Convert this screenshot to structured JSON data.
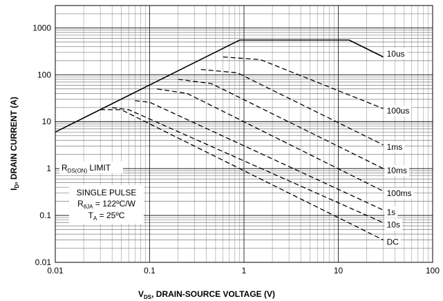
{
  "chart_data": {
    "type": "line",
    "x_scale": "log",
    "y_scale": "log",
    "xlim": [
      0.01,
      100
    ],
    "ylim": [
      0.01,
      3000
    ],
    "grid": true,
    "x_ticks": [
      "0.01",
      "0.1",
      "1",
      "10",
      "100"
    ],
    "y_ticks": [
      "0.01",
      "0.1",
      "1",
      "10",
      "100",
      "1000"
    ],
    "xlabel": {
      "main": "V",
      "sub": "DS",
      "rest": ", DRAIN-SOURCE VOLTAGE (V)"
    },
    "ylabel": {
      "main": "I",
      "sub": "D",
      "rest": ", DRAIN CURRENT (A)"
    },
    "series": [
      {
        "name": "10us",
        "style": "solid",
        "x": [
          0.01,
          0.9,
          1.5,
          13,
          30
        ],
        "y": [
          6,
          550,
          550,
          550,
          240
        ]
      },
      {
        "name": "100us",
        "style": "dashed",
        "x": [
          0.6,
          1.5,
          30
        ],
        "y": [
          240,
          210,
          19
        ]
      },
      {
        "name": "1ms",
        "style": "dashed",
        "x": [
          0.35,
          0.85,
          30
        ],
        "y": [
          130,
          110,
          3.2
        ]
      },
      {
        "name": "10ms",
        "style": "dashed",
        "x": [
          0.2,
          0.45,
          30
        ],
        "y": [
          80,
          65,
          1
        ]
      },
      {
        "name": "100ms",
        "style": "dashed",
        "x": [
          0.12,
          0.25,
          30
        ],
        "y": [
          50,
          40,
          0.33
        ]
      },
      {
        "name": "1s",
        "style": "dashed",
        "x": [
          0.07,
          0.1,
          30
        ],
        "y": [
          28,
          26,
          0.13
        ]
      },
      {
        "name": "10s",
        "style": "dashed",
        "x": [
          0.04,
          0.06,
          30
        ],
        "y": [
          20,
          18,
          0.07
        ]
      },
      {
        "name": "DC",
        "style": "dashed",
        "x": [
          0.03,
          0.05,
          30
        ],
        "y": [
          18,
          18,
          0.03
        ]
      }
    ],
    "annotations": {
      "rds_limit": {
        "main": "R",
        "sub": "DS(ON)",
        "rest": " LIMIT"
      },
      "single_pulse": "SINGLE PULSE",
      "rtheta": {
        "main": "R",
        "sub": "θJA",
        "rest": " = 122ºC/W"
      },
      "ta": {
        "main": "T",
        "sub": "A",
        "rest": " = 25ºC"
      }
    }
  }
}
